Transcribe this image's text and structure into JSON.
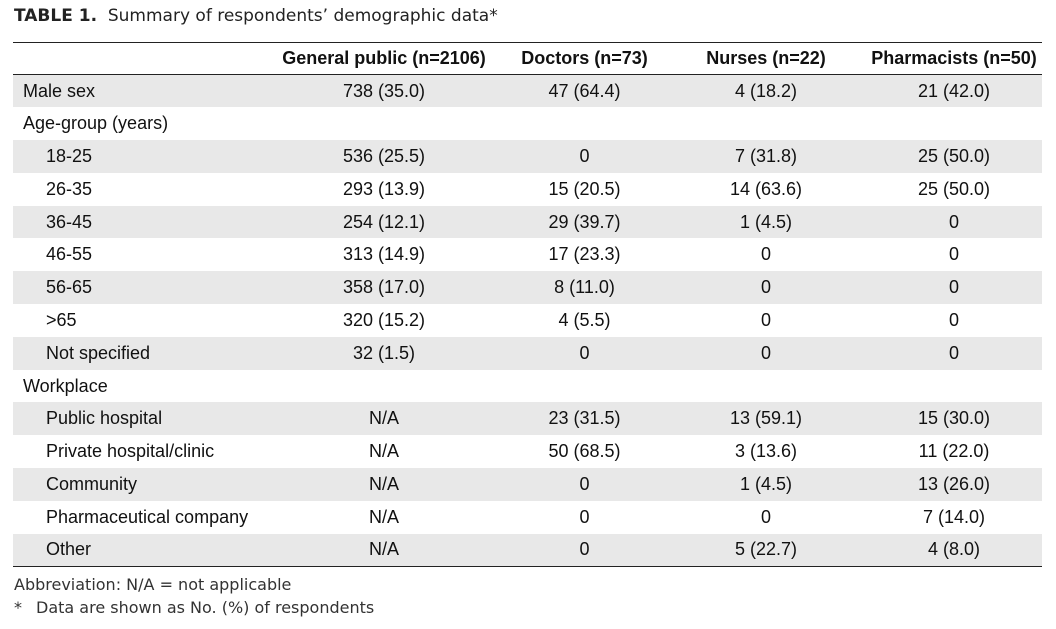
{
  "caption": {
    "lead": "TABLE 1.",
    "text": "Summary of respondents’ demographic data*"
  },
  "table": {
    "headers": [
      "",
      "General public (n=2106)",
      "Doctors (n=73)",
      "Nurses (n=22)",
      "Pharmacists (n=50)"
    ],
    "rows": [
      {
        "label": "Male sex",
        "indent": false,
        "shaded": true,
        "cells": [
          "738 (35.0)",
          "47 (64.4)",
          "4 (18.2)",
          "21 (42.0)"
        ]
      },
      {
        "label": "Age-group (years)",
        "indent": false,
        "shaded": false,
        "cells": [
          "",
          "",
          "",
          ""
        ]
      },
      {
        "label": "18-25",
        "indent": true,
        "shaded": true,
        "cells": [
          "536 (25.5)",
          "0",
          "7 (31.8)",
          "25 (50.0)"
        ]
      },
      {
        "label": "26-35",
        "indent": true,
        "shaded": false,
        "cells": [
          "293 (13.9)",
          "15 (20.5)",
          "14 (63.6)",
          "25 (50.0)"
        ]
      },
      {
        "label": "36-45",
        "indent": true,
        "shaded": true,
        "cells": [
          "254 (12.1)",
          "29 (39.7)",
          "1 (4.5)",
          "0"
        ]
      },
      {
        "label": "46-55",
        "indent": true,
        "shaded": false,
        "cells": [
          "313 (14.9)",
          "17 (23.3)",
          "0",
          "0"
        ]
      },
      {
        "label": "56-65",
        "indent": true,
        "shaded": true,
        "cells": [
          "358 (17.0)",
          "8 (11.0)",
          "0",
          "0"
        ]
      },
      {
        "label": ">65",
        "indent": true,
        "shaded": false,
        "cells": [
          "320 (15.2)",
          "4 (5.5)",
          "0",
          "0"
        ]
      },
      {
        "label": "Not specified",
        "indent": true,
        "shaded": true,
        "cells": [
          "32 (1.5)",
          "0",
          "0",
          "0"
        ]
      },
      {
        "label": "Workplace",
        "indent": false,
        "shaded": false,
        "cells": [
          "",
          "",
          "",
          ""
        ]
      },
      {
        "label": "Public hospital",
        "indent": true,
        "shaded": true,
        "cells": [
          "N/A",
          "23 (31.5)",
          "13 (59.1)",
          "15 (30.0)"
        ]
      },
      {
        "label": "Private hospital/clinic",
        "indent": true,
        "shaded": false,
        "cells": [
          "N/A",
          "50 (68.5)",
          "3 (13.6)",
          "11 (22.0)"
        ]
      },
      {
        "label": "Community",
        "indent": true,
        "shaded": true,
        "cells": [
          "N/A",
          "0",
          "1 (4.5)",
          "13 (26.0)"
        ]
      },
      {
        "label": "Pharmaceutical company",
        "indent": true,
        "shaded": false,
        "cells": [
          "N/A",
          "0",
          "0",
          "7 (14.0)"
        ]
      },
      {
        "label": "Other",
        "indent": true,
        "shaded": true,
        "cells": [
          "N/A",
          "0",
          "5 (22.7)",
          "4 (8.0)"
        ]
      }
    ]
  },
  "footnotes": {
    "abbreviation": "Abbreviation: N/A = not applicable",
    "mark": "*",
    "note": "Data are shown as No. (%) of respondents"
  }
}
